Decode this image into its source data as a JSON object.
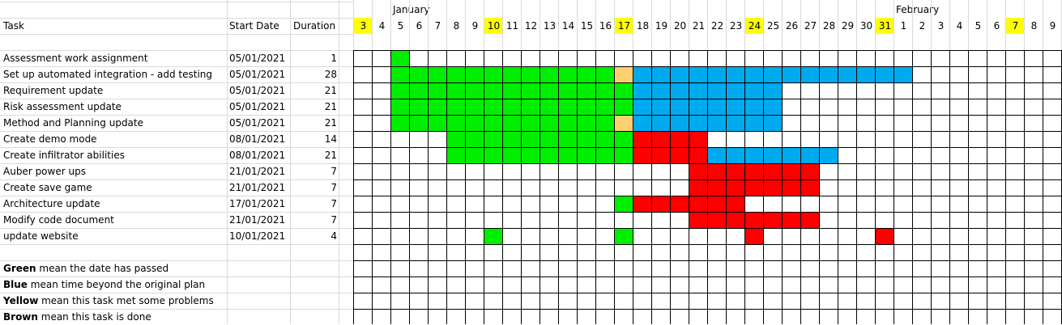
{
  "headers": {
    "task": "Task",
    "start": "Start Date",
    "duration": "Duration"
  },
  "months": [
    {
      "label": "January",
      "col": 2
    },
    {
      "label": "February",
      "col": 29
    }
  ],
  "days": [
    {
      "d": "3",
      "hl": true
    },
    {
      "d": "4"
    },
    {
      "d": "5"
    },
    {
      "d": "6"
    },
    {
      "d": "7"
    },
    {
      "d": "8"
    },
    {
      "d": "9"
    },
    {
      "d": "10",
      "hl": true
    },
    {
      "d": "11"
    },
    {
      "d": "12"
    },
    {
      "d": "13"
    },
    {
      "d": "14"
    },
    {
      "d": "15"
    },
    {
      "d": "16"
    },
    {
      "d": "17",
      "hl": true
    },
    {
      "d": "18"
    },
    {
      "d": "19"
    },
    {
      "d": "20"
    },
    {
      "d": "21"
    },
    {
      "d": "22"
    },
    {
      "d": "23"
    },
    {
      "d": "24",
      "hl": true
    },
    {
      "d": "25"
    },
    {
      "d": "26"
    },
    {
      "d": "27"
    },
    {
      "d": "28"
    },
    {
      "d": "29"
    },
    {
      "d": "30"
    },
    {
      "d": "31",
      "hl": true
    },
    {
      "d": "1"
    },
    {
      "d": "2"
    },
    {
      "d": "3"
    },
    {
      "d": "4"
    },
    {
      "d": "5"
    },
    {
      "d": "6"
    },
    {
      "d": "7",
      "hl": true
    },
    {
      "d": "8"
    },
    {
      "d": "9"
    }
  ],
  "colors": {
    "green": "#00ee00",
    "blue": "#00aaee",
    "yellow": "#ffd070",
    "red": "#ff0000",
    "highlight": "#ffff00"
  },
  "tasks": [
    {
      "name": "Assessment work assignment",
      "start": "05/01/2021",
      "duration": "1",
      "bars": [
        {
          "from": 2,
          "to": 2,
          "c": "green"
        }
      ]
    },
    {
      "name": "Set up automated integration - add testing",
      "start": "05/01/2021",
      "duration": "28",
      "bars": [
        {
          "from": 2,
          "to": 13,
          "c": "green"
        },
        {
          "from": 14,
          "to": 14,
          "c": "yellow"
        },
        {
          "from": 15,
          "to": 29,
          "c": "blue"
        }
      ]
    },
    {
      "name": "Requirement update",
      "start": "05/01/2021",
      "duration": "21",
      "bars": [
        {
          "from": 2,
          "to": 14,
          "c": "green"
        },
        {
          "from": 15,
          "to": 22,
          "c": "blue"
        }
      ]
    },
    {
      "name": "Risk assessment update",
      "start": "05/01/2021",
      "duration": "21",
      "bars": [
        {
          "from": 2,
          "to": 14,
          "c": "green"
        },
        {
          "from": 15,
          "to": 22,
          "c": "blue"
        }
      ]
    },
    {
      "name": "Method and Planning update",
      "start": "05/01/2021",
      "duration": "21",
      "bars": [
        {
          "from": 2,
          "to": 13,
          "c": "green"
        },
        {
          "from": 14,
          "to": 14,
          "c": "yellow"
        },
        {
          "from": 15,
          "to": 22,
          "c": "blue"
        }
      ]
    },
    {
      "name": "Create demo mode",
      "start": "08/01/2021",
      "duration": "14",
      "bars": [
        {
          "from": 5,
          "to": 14,
          "c": "green"
        },
        {
          "from": 15,
          "to": 18,
          "c": "red"
        }
      ]
    },
    {
      "name": "Create infiltrator abilities",
      "start": "08/01/2021",
      "duration": "21",
      "bars": [
        {
          "from": 5,
          "to": 14,
          "c": "green"
        },
        {
          "from": 15,
          "to": 18,
          "c": "red"
        },
        {
          "from": 19,
          "to": 25,
          "c": "blue"
        }
      ]
    },
    {
      "name": "Auber power ups",
      "start": "21/01/2021",
      "duration": "7",
      "bars": [
        {
          "from": 18,
          "to": 24,
          "c": "red"
        }
      ]
    },
    {
      "name": "Create save game",
      "start": "21/01/2021",
      "duration": "7",
      "bars": [
        {
          "from": 18,
          "to": 24,
          "c": "red"
        }
      ]
    },
    {
      "name": "Architecture update",
      "start": "17/01/2021",
      "duration": "7",
      "bars": [
        {
          "from": 14,
          "to": 14,
          "c": "green"
        },
        {
          "from": 15,
          "to": 20,
          "c": "red"
        }
      ]
    },
    {
      "name": "Modify code document",
      "start": "21/01/2021",
      "duration": "7",
      "bars": [
        {
          "from": 18,
          "to": 20,
          "c": "red"
        },
        {
          "from": 21,
          "to": 24,
          "c": "red"
        }
      ]
    },
    {
      "name": "update website",
      "start": "10/01/2021",
      "duration": "4",
      "bars": [
        {
          "from": 7,
          "to": 7,
          "c": "green"
        },
        {
          "from": 14,
          "to": 14,
          "c": "green"
        },
        {
          "from": 21,
          "to": 21,
          "c": "red"
        },
        {
          "from": 28,
          "to": 28,
          "c": "red"
        }
      ]
    }
  ],
  "legend": [
    {
      "key": "Green",
      "text": " mean the date has passed"
    },
    {
      "key": "Blue",
      "text": " mean time beyond the original plan"
    },
    {
      "key": "Yellow",
      "text": " mean this task met some problems"
    },
    {
      "key": "Brown",
      "text": " mean this task is done"
    }
  ]
}
